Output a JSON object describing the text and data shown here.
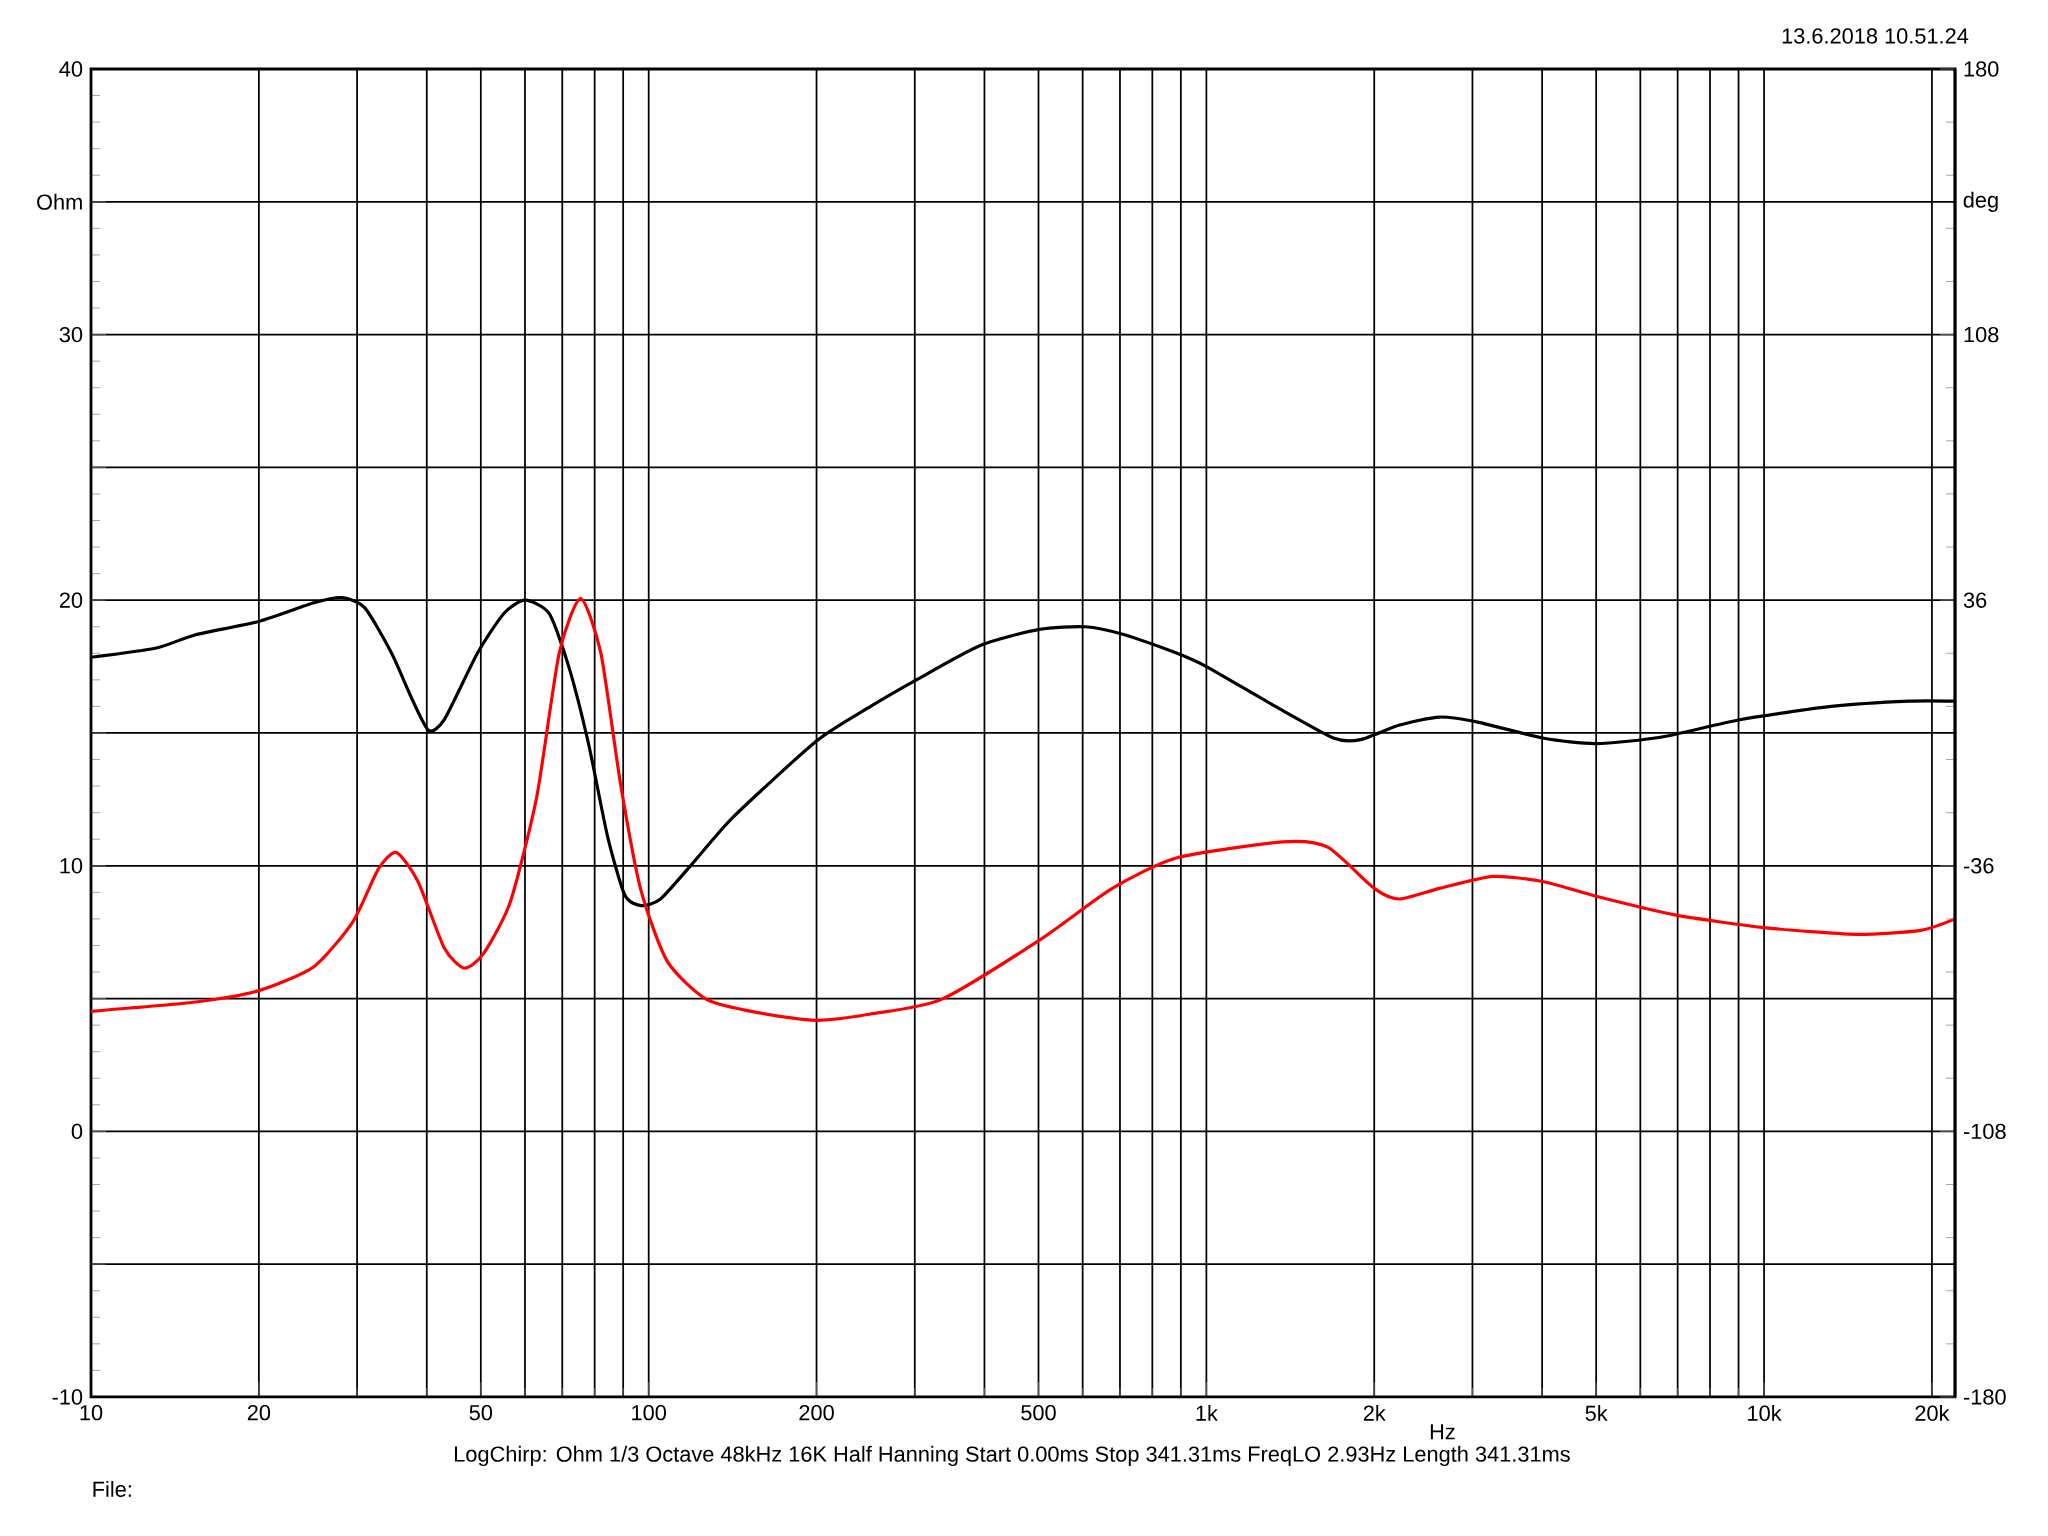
{
  "chart_data": {
    "type": "line",
    "xlabel": "Hz",
    "ylabel": "Ohm",
    "y2label": "deg",
    "log": "x",
    "grid": true,
    "xlim": [
      10,
      22000
    ],
    "ylim": [
      -10,
      40
    ],
    "y2lim": [
      -180,
      180
    ],
    "xticks": [
      10,
      20,
      50,
      100,
      200,
      500,
      {
        "value": 1000,
        "label": "1k"
      },
      {
        "value": 2000,
        "label": "2k"
      },
      {
        "value": 5000,
        "label": "5k"
      },
      {
        "value": 10000,
        "label": "10k"
      },
      {
        "value": 20000,
        "label": "20k"
      }
    ],
    "yticks": [
      -10,
      {
        "value": -5,
        "label": null
      },
      0,
      {
        "value": 5,
        "label": null
      },
      10,
      {
        "value": 15,
        "label": null
      },
      20,
      {
        "value": 25,
        "label": null
      },
      30,
      {
        "value": 35,
        "label": null
      },
      40
    ],
    "y2ticks": [
      -180,
      -108,
      -36,
      36,
      108,
      180
    ],
    "annotations": [
      "13.6.2018 10.51.24",
      "LogChirp:  Ohm   1/3 Octave   48kHz   16K   Half Hanning   Start 0.00ms   Stop 341.31ms   FreqLO 2.93Hz   Length 341.31ms",
      "File:"
    ],
    "series": [
      {
        "color": "#000000",
        "x": [
          10,
          13.1,
          15.4,
          20,
          25.1,
          28.2,
          31,
          34.6,
          37.6,
          40.3,
          43,
          49.3,
          55,
          60,
          66.3,
          71.9,
          78,
          84.4,
          90.6,
          96.8,
          105,
          120,
          142,
          200,
          250,
          302,
          394,
          502,
          606,
          713,
          886,
          1000,
          1330,
          1695,
          1890,
          2220,
          2620,
          3080,
          4030,
          5000,
          6560,
          9050,
          13200,
          18200,
          22000
        ],
        "values": [
          17.85,
          18.2,
          18.7,
          19.2,
          19.9,
          20.1,
          19.7,
          18.0,
          16.3,
          15.1,
          15.5,
          18.0,
          19.5,
          20.0,
          19.5,
          17.5,
          14.6,
          11.1,
          8.9,
          8.5,
          8.75,
          10.1,
          11.85,
          14.7,
          16.0,
          17.0,
          18.3,
          18.9,
          19.0,
          18.7,
          18.0,
          17.5,
          16.0,
          14.8,
          14.75,
          15.3,
          15.6,
          15.4,
          14.8,
          14.6,
          14.85,
          15.5,
          16.0,
          16.2,
          16.2
        ]
      },
      {
        "color": "#ff0000",
        "x": [
          10,
          15.4,
          20,
          25.1,
          29.5,
          32.8,
          35.3,
          38.6,
          43,
          46.7,
          50.6,
          56.5,
          63,
          69.1,
          75.5,
          82.1,
          89,
          96.8,
          108,
          127,
          157,
          200,
          250,
          335,
          502,
          678,
          886,
          1370,
          1650,
          2000,
          2220,
          2620,
          3270,
          4030,
          5000,
          6920,
          10000,
          14600,
          19100,
          22000
        ],
        "values": [
          4.52,
          4.87,
          5.3,
          6.2,
          7.9,
          9.9,
          10.5,
          9.4,
          6.9,
          6.15,
          6.7,
          8.65,
          12.6,
          18.0,
          20.06,
          18.0,
          13.1,
          9.1,
          6.4,
          4.97,
          4.47,
          4.18,
          4.42,
          4.97,
          7.2,
          9.15,
          10.3,
          10.9,
          10.7,
          9.15,
          8.75,
          9.15,
          9.6,
          9.4,
          8.85,
          8.15,
          7.67,
          7.42,
          7.57,
          8.0
        ]
      }
    ]
  }
}
